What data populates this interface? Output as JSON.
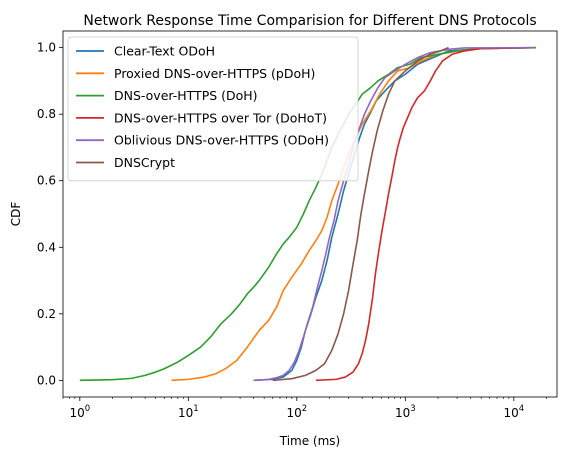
{
  "chart_data": {
    "type": "line",
    "title": "Network Response Time Comparision for Different DNS Protocols",
    "xlabel": "Time (ms)",
    "ylabel": "CDF",
    "xscale": "log",
    "xlim": [
      0.7,
      25000
    ],
    "ylim": [
      -0.05,
      1.05
    ],
    "xticks": [
      {
        "value": 1,
        "base": "10",
        "exp": "0"
      },
      {
        "value": 10,
        "base": "10",
        "exp": "1"
      },
      {
        "value": 100,
        "base": "10",
        "exp": "2"
      },
      {
        "value": 1000,
        "base": "10",
        "exp": "3"
      },
      {
        "value": 10000,
        "base": "10",
        "exp": "4"
      }
    ],
    "yticks": [
      {
        "value": 0,
        "label": "0.0"
      },
      {
        "value": 0.2,
        "label": "0.2"
      },
      {
        "value": 0.4,
        "label": "0.4"
      },
      {
        "value": 0.6,
        "label": "0.6"
      },
      {
        "value": 0.8,
        "label": "0.8"
      },
      {
        "value": 1.0,
        "label": "1.0"
      }
    ],
    "grid": false,
    "legend": "top-left",
    "series": [
      {
        "name": "Clear-Text ODoH",
        "color": "#1f77b4",
        "points": [
          [
            40,
            0
          ],
          [
            60,
            0.003
          ],
          [
            75,
            0.01
          ],
          [
            90,
            0.03
          ],
          [
            100,
            0.06
          ],
          [
            110,
            0.1
          ],
          [
            120,
            0.15
          ],
          [
            135,
            0.2
          ],
          [
            150,
            0.25
          ],
          [
            170,
            0.3
          ],
          [
            190,
            0.36
          ],
          [
            210,
            0.43
          ],
          [
            240,
            0.5
          ],
          [
            270,
            0.57
          ],
          [
            300,
            0.62
          ],
          [
            340,
            0.68
          ],
          [
            380,
            0.73
          ],
          [
            420,
            0.77
          ],
          [
            470,
            0.8
          ],
          [
            540,
            0.84
          ],
          [
            650,
            0.87
          ],
          [
            800,
            0.9
          ],
          [
            1000,
            0.92
          ],
          [
            1300,
            0.95
          ],
          [
            1800,
            0.97
          ],
          [
            2500,
            0.99
          ],
          [
            5000,
            0.997
          ],
          [
            15000,
            1.0
          ]
        ]
      },
      {
        "name": "Proxied DNS-over-HTTPS (pDoH)",
        "color": "#ff7f0e",
        "points": [
          [
            7,
            0
          ],
          [
            10,
            0.003
          ],
          [
            14,
            0.01
          ],
          [
            18,
            0.02
          ],
          [
            22,
            0.035
          ],
          [
            28,
            0.06
          ],
          [
            35,
            0.1
          ],
          [
            45,
            0.15
          ],
          [
            55,
            0.18
          ],
          [
            65,
            0.22
          ],
          [
            75,
            0.27
          ],
          [
            90,
            0.31
          ],
          [
            110,
            0.35
          ],
          [
            130,
            0.39
          ],
          [
            150,
            0.42
          ],
          [
            170,
            0.45
          ],
          [
            190,
            0.49
          ],
          [
            210,
            0.54
          ],
          [
            240,
            0.59
          ],
          [
            270,
            0.64
          ],
          [
            300,
            0.68
          ],
          [
            350,
            0.73
          ],
          [
            400,
            0.77
          ],
          [
            480,
            0.81
          ],
          [
            580,
            0.86
          ],
          [
            700,
            0.9
          ],
          [
            850,
            0.93
          ],
          [
            1100,
            0.94
          ],
          [
            1400,
            0.96
          ],
          [
            2000,
            0.98
          ],
          [
            3000,
            0.99
          ],
          [
            5000,
            0.997
          ],
          [
            16000,
            1.0
          ]
        ]
      },
      {
        "name": "DNS-over-HTTPS (DoH)",
        "color": "#2ca02c",
        "points": [
          [
            1,
            0
          ],
          [
            2,
            0.002
          ],
          [
            3,
            0.006
          ],
          [
            4,
            0.015
          ],
          [
            5,
            0.025
          ],
          [
            6,
            0.035
          ],
          [
            8,
            0.055
          ],
          [
            10,
            0.075
          ],
          [
            13,
            0.1
          ],
          [
            16,
            0.13
          ],
          [
            20,
            0.17
          ],
          [
            25,
            0.2
          ],
          [
            30,
            0.23
          ],
          [
            35,
            0.26
          ],
          [
            40,
            0.28
          ],
          [
            45,
            0.3
          ],
          [
            55,
            0.34
          ],
          [
            65,
            0.38
          ],
          [
            75,
            0.41
          ],
          [
            85,
            0.43
          ],
          [
            100,
            0.46
          ],
          [
            115,
            0.5
          ],
          [
            130,
            0.54
          ],
          [
            150,
            0.58
          ],
          [
            170,
            0.62
          ],
          [
            190,
            0.66
          ],
          [
            210,
            0.7
          ],
          [
            240,
            0.74
          ],
          [
            270,
            0.77
          ],
          [
            300,
            0.8
          ],
          [
            350,
            0.83
          ],
          [
            400,
            0.86
          ],
          [
            480,
            0.88
          ],
          [
            560,
            0.9
          ],
          [
            700,
            0.92
          ],
          [
            850,
            0.94
          ],
          [
            1100,
            0.95
          ],
          [
            1400,
            0.97
          ],
          [
            2000,
            0.98
          ],
          [
            3000,
            0.99
          ],
          [
            5000,
            0.997
          ],
          [
            16000,
            1.0
          ]
        ]
      },
      {
        "name": "DNS-over-HTTPS over Tor (DoHoT)",
        "color": "#d62728",
        "points": [
          [
            150,
            0
          ],
          [
            230,
            0.003
          ],
          [
            280,
            0.01
          ],
          [
            330,
            0.025
          ],
          [
            370,
            0.05
          ],
          [
            400,
            0.08
          ],
          [
            430,
            0.12
          ],
          [
            460,
            0.17
          ],
          [
            500,
            0.25
          ],
          [
            530,
            0.32
          ],
          [
            570,
            0.39
          ],
          [
            610,
            0.45
          ],
          [
            650,
            0.5
          ],
          [
            700,
            0.56
          ],
          [
            750,
            0.61
          ],
          [
            800,
            0.66
          ],
          [
            850,
            0.7
          ],
          [
            900,
            0.73
          ],
          [
            960,
            0.76
          ],
          [
            1050,
            0.79
          ],
          [
            1150,
            0.82
          ],
          [
            1300,
            0.85
          ],
          [
            1500,
            0.87
          ],
          [
            1700,
            0.9
          ],
          [
            1900,
            0.93
          ],
          [
            2200,
            0.96
          ],
          [
            2700,
            0.98
          ],
          [
            3500,
            0.99
          ],
          [
            5000,
            0.997
          ],
          [
            14000,
            1.0
          ]
        ]
      },
      {
        "name": "Oblivious DNS-over-HTTPS (ODoH)",
        "color": "#9467bd",
        "points": [
          [
            40,
            0
          ],
          [
            55,
            0.003
          ],
          [
            65,
            0.008
          ],
          [
            75,
            0.015
          ],
          [
            85,
            0.03
          ],
          [
            95,
            0.055
          ],
          [
            105,
            0.09
          ],
          [
            115,
            0.13
          ],
          [
            125,
            0.17
          ],
          [
            140,
            0.22
          ],
          [
            155,
            0.28
          ],
          [
            170,
            0.33
          ],
          [
            185,
            0.38
          ],
          [
            200,
            0.43
          ],
          [
            220,
            0.48
          ],
          [
            240,
            0.54
          ],
          [
            270,
            0.6
          ],
          [
            300,
            0.65
          ],
          [
            330,
            0.7
          ],
          [
            370,
            0.75
          ],
          [
            420,
            0.8
          ],
          [
            480,
            0.84
          ],
          [
            560,
            0.88
          ],
          [
            650,
            0.91
          ],
          [
            800,
            0.93
          ],
          [
            1000,
            0.95
          ],
          [
            1300,
            0.97
          ],
          [
            1700,
            0.985
          ],
          [
            2500,
            0.995
          ],
          [
            3500,
            0.999
          ],
          [
            15000,
            1.0
          ]
        ]
      },
      {
        "name": "DNSCrypt",
        "color": "#8c564b",
        "points": [
          [
            60,
            0
          ],
          [
            90,
            0.005
          ],
          [
            120,
            0.015
          ],
          [
            150,
            0.03
          ],
          [
            180,
            0.05
          ],
          [
            210,
            0.09
          ],
          [
            240,
            0.14
          ],
          [
            270,
            0.2
          ],
          [
            300,
            0.27
          ],
          [
            330,
            0.35
          ],
          [
            360,
            0.42
          ],
          [
            390,
            0.5
          ],
          [
            420,
            0.56
          ],
          [
            460,
            0.63
          ],
          [
            500,
            0.69
          ],
          [
            550,
            0.75
          ],
          [
            620,
            0.81
          ],
          [
            700,
            0.86
          ],
          [
            800,
            0.9
          ],
          [
            1000,
            0.93
          ],
          [
            1300,
            0.96
          ],
          [
            1700,
            0.98
          ],
          [
            2100,
            0.99
          ],
          [
            2500,
            1.0
          ]
        ]
      }
    ]
  }
}
